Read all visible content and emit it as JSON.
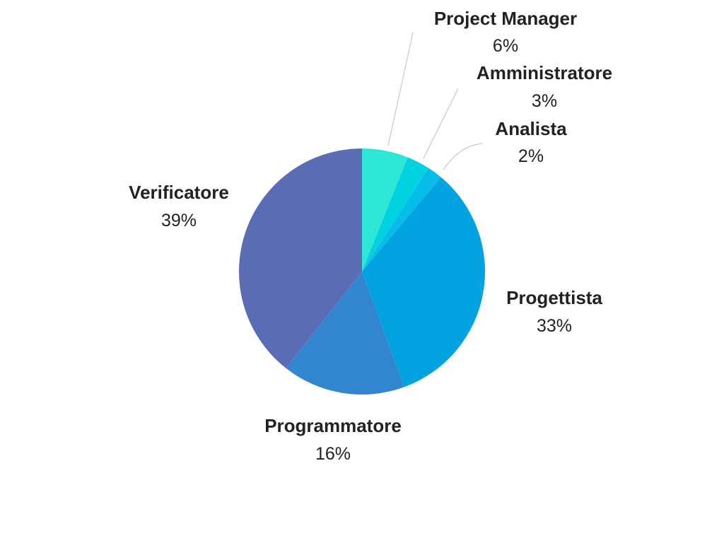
{
  "chart_data": {
    "type": "pie",
    "title": "",
    "legend": "none",
    "slices": [
      {
        "label": "Project Manager",
        "value": 6,
        "value_label": "6%",
        "color": "#2ee6d6"
      },
      {
        "label": "Amministratore",
        "value": 3,
        "value_label": "3%",
        "color": "#00d2e0"
      },
      {
        "label": "Analista",
        "value": 2,
        "value_label": "2%",
        "color": "#05bde8"
      },
      {
        "label": "Progettista",
        "value": 33,
        "value_label": "33%",
        "color": "#00a3e0"
      },
      {
        "label": "Programmatore",
        "value": 16,
        "value_label": "16%",
        "color": "#3285cf"
      },
      {
        "label": "Verificatore",
        "value": 39,
        "value_label": "39%",
        "color": "#5a6cb4"
      }
    ]
  }
}
